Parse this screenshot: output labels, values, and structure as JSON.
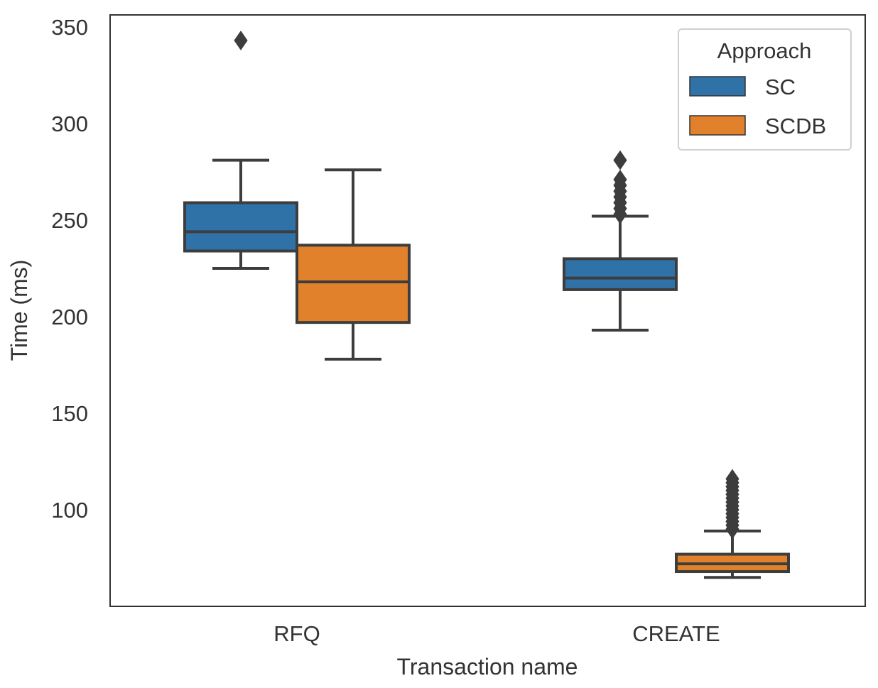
{
  "chart_data": {
    "type": "box",
    "title": "",
    "xlabel": "Transaction name",
    "ylabel": "Time (ms)",
    "categories": [
      "RFQ",
      "CREATE"
    ],
    "ylim": [
      50,
      355
    ],
    "yticks": [
      100,
      150,
      200,
      250,
      300,
      350
    ],
    "grid": false,
    "legend": {
      "title": "Approach",
      "placement": "top-right"
    },
    "series": [
      {
        "name": "SC",
        "color": "#2f72a8",
        "boxes": [
          {
            "category": "RFQ",
            "whisker_low": 225,
            "q1": 234,
            "median": 244,
            "q3": 259,
            "whisker_high": 281,
            "outliers": [
              343
            ]
          },
          {
            "category": "CREATE",
            "whisker_low": 193,
            "q1": 214,
            "median": 220,
            "q3": 230,
            "whisker_high": 252,
            "outliers": [
              253,
              256,
              259,
              262,
              265,
              268,
              271,
              281
            ]
          }
        ]
      },
      {
        "name": "SCDB",
        "color": "#e1812c",
        "boxes": [
          {
            "category": "RFQ",
            "whisker_low": 178,
            "q1": 197,
            "median": 218,
            "q3": 237,
            "whisker_high": 276,
            "outliers": []
          },
          {
            "category": "CREATE",
            "whisker_low": 65,
            "q1": 68,
            "median": 72,
            "q3": 77,
            "whisker_high": 89,
            "outliers": [
              90,
              92,
              94,
              96,
              98,
              100,
              102,
              104,
              106,
              108,
              110,
              112,
              114,
              116
            ]
          }
        ]
      }
    ]
  }
}
